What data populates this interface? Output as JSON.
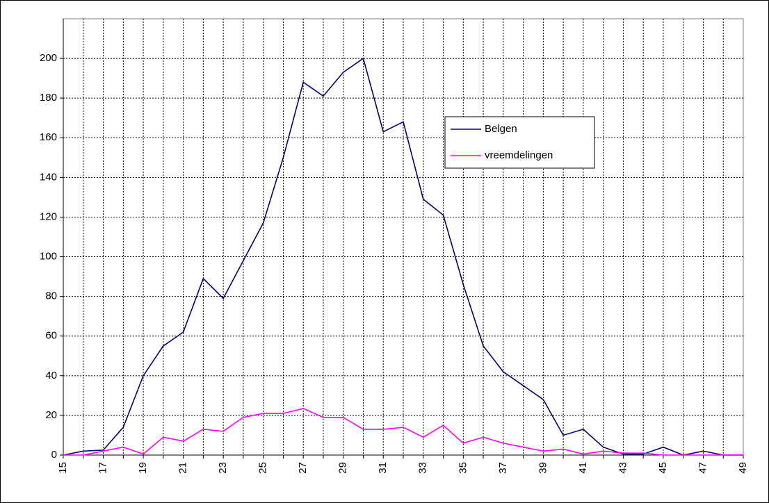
{
  "chart_data": {
    "type": "line",
    "categories": [
      "15",
      null,
      "17",
      null,
      "19",
      null,
      "21",
      null,
      "23",
      null,
      "25",
      null,
      "27",
      null,
      "29",
      null,
      "31",
      null,
      "33",
      null,
      "35",
      null,
      "37",
      null,
      "39",
      null,
      "41",
      null,
      "43",
      null,
      "45",
      null,
      "47",
      null,
      "49"
    ],
    "series": [
      {
        "name": "Belgen",
        "color": "#000080",
        "values": [
          0,
          2,
          2.5,
          14,
          40,
          55,
          62,
          89,
          79,
          98,
          117,
          150,
          188,
          181,
          193,
          200,
          163,
          168,
          129,
          121,
          86,
          55,
          42,
          35,
          28,
          10,
          13,
          4,
          0.5,
          0.5,
          4,
          0,
          2,
          0,
          0
        ]
      },
      {
        "name": "vreemdelingen",
        "color": "#ff00ff",
        "values": [
          0,
          0,
          2,
          4,
          0.5,
          9,
          7,
          13,
          12,
          19,
          21,
          21,
          23.5,
          19,
          19,
          13,
          13,
          14,
          9,
          15,
          6,
          9,
          6,
          4,
          2,
          3,
          0.5,
          2,
          1,
          1,
          0,
          0,
          0,
          0,
          0
        ]
      }
    ],
    "ylim": [
      0,
      220
    ],
    "yticks": [
      0,
      20,
      40,
      60,
      80,
      100,
      120,
      140,
      160,
      180,
      200
    ],
    "grid": true
  }
}
